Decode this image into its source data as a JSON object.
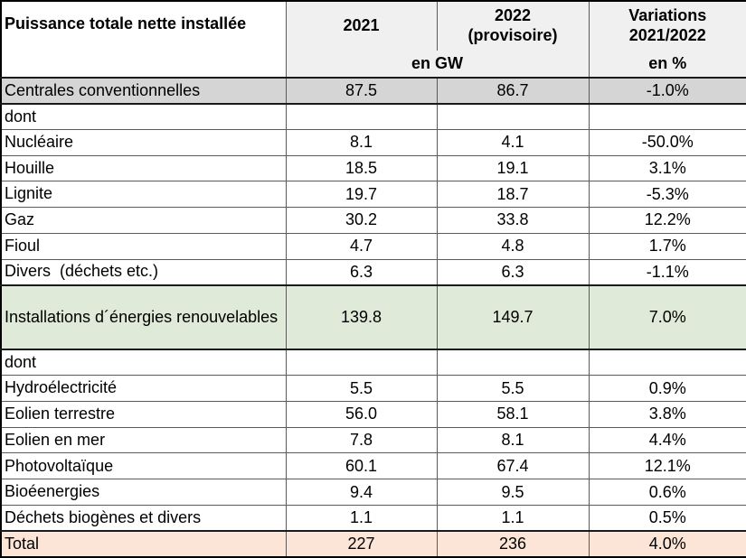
{
  "header": {
    "title": "Puissance totale nette installée",
    "col_2021": "2021",
    "col_2022": "2022\n(provisoire)",
    "col_variations": "Variations\n2021/2022",
    "unit_gw": "en GW",
    "unit_pct": "en %"
  },
  "rows": [
    {
      "kind": "gray",
      "label": "Centrales conventionnelles",
      "v2021": "87.5",
      "v2022": "86.7",
      "variation": "-1.0%"
    },
    {
      "kind": "plain",
      "label": "dont",
      "v2021": "",
      "v2022": "",
      "variation": ""
    },
    {
      "kind": "plain",
      "label": "Nucléaire",
      "v2021": "8.1",
      "v2022": "4.1",
      "variation": "-50.0%"
    },
    {
      "kind": "plain",
      "label": "Houille",
      "v2021": "18.5",
      "v2022": "19.1",
      "variation": "3.1%"
    },
    {
      "kind": "plain",
      "label": "Lignite",
      "v2021": "19.7",
      "v2022": "18.7",
      "variation": "-5.3%"
    },
    {
      "kind": "plain",
      "label": "Gaz",
      "v2021": "30.2",
      "v2022": "33.8",
      "variation": "12.2%"
    },
    {
      "kind": "plain",
      "label": "Fioul",
      "v2021": "4.7",
      "v2022": "4.8",
      "variation": "1.7%"
    },
    {
      "kind": "plain",
      "label": "Divers  (déchets etc.)",
      "v2021": "6.3",
      "v2022": "6.3",
      "variation": "-1.1%"
    },
    {
      "kind": "green",
      "label": "Installations d´énergies renouvelables",
      "v2021": "139.8",
      "v2022": "149.7",
      "variation": "7.0%"
    },
    {
      "kind": "plain",
      "label": "dont",
      "v2021": "",
      "v2022": "",
      "variation": ""
    },
    {
      "kind": "plain",
      "label": "Hydroélectricité",
      "v2021": "5.5",
      "v2022": "5.5",
      "variation": "0.9%"
    },
    {
      "kind": "plain",
      "label": "Eolien terrestre",
      "v2021": "56.0",
      "v2022": "58.1",
      "variation": "3.8%"
    },
    {
      "kind": "plain",
      "label": "Eolien en mer",
      "v2021": "7.8",
      "v2022": "8.1",
      "variation": "4.4%"
    },
    {
      "kind": "plain",
      "label": "Photovoltaïque",
      "v2021": "60.1",
      "v2022": "67.4",
      "variation": "12.1%"
    },
    {
      "kind": "plain",
      "label": "Bioéenergies",
      "v2021": "9.4",
      "v2022": "9.5",
      "variation": "0.6%"
    },
    {
      "kind": "plain",
      "label": "Déchets biogènes et divers",
      "v2021": "1.1",
      "v2022": "1.1",
      "variation": "0.5%"
    },
    {
      "kind": "total",
      "label": "Total",
      "v2021": "227",
      "v2022": "236",
      "variation": "4.0%"
    }
  ],
  "colors": {
    "header_bg": "#f0f0f0",
    "gray_row_bg": "#d5d5d5",
    "green_row_bg": "#e0ead8",
    "total_row_bg": "#fce4d6",
    "inner_border": "#5a5a5a",
    "frame_border": "#000000"
  },
  "chart_data": {
    "type": "table",
    "title": "Puissance totale nette installée",
    "columns": [
      "Puissance totale nette installée",
      "2021 (en GW)",
      "2022 provisoire (en GW)",
      "Variations 2021/2022 (en %)"
    ],
    "rows": [
      [
        "Centrales conventionnelles",
        87.5,
        86.7,
        -1.0
      ],
      [
        "dont",
        null,
        null,
        null
      ],
      [
        "Nucléaire",
        8.1,
        4.1,
        -50.0
      ],
      [
        "Houille",
        18.5,
        19.1,
        3.1
      ],
      [
        "Lignite",
        19.7,
        18.7,
        -5.3
      ],
      [
        "Gaz",
        30.2,
        33.8,
        12.2
      ],
      [
        "Fioul",
        4.7,
        4.8,
        1.7
      ],
      [
        "Divers (déchets etc.)",
        6.3,
        6.3,
        -1.1
      ],
      [
        "Installations d´énergies renouvelables",
        139.8,
        149.7,
        7.0
      ],
      [
        "dont",
        null,
        null,
        null
      ],
      [
        "Hydroélectricité",
        5.5,
        5.5,
        0.9
      ],
      [
        "Eolien terrestre",
        56.0,
        58.1,
        3.8
      ],
      [
        "Eolien en mer",
        7.8,
        8.1,
        4.4
      ],
      [
        "Photovoltaïque",
        60.1,
        67.4,
        12.1
      ],
      [
        "Bioéenergies",
        9.4,
        9.5,
        0.6
      ],
      [
        "Déchets biogènes et divers",
        1.1,
        1.1,
        0.5
      ],
      [
        "Total",
        227,
        236,
        4.0
      ]
    ]
  }
}
